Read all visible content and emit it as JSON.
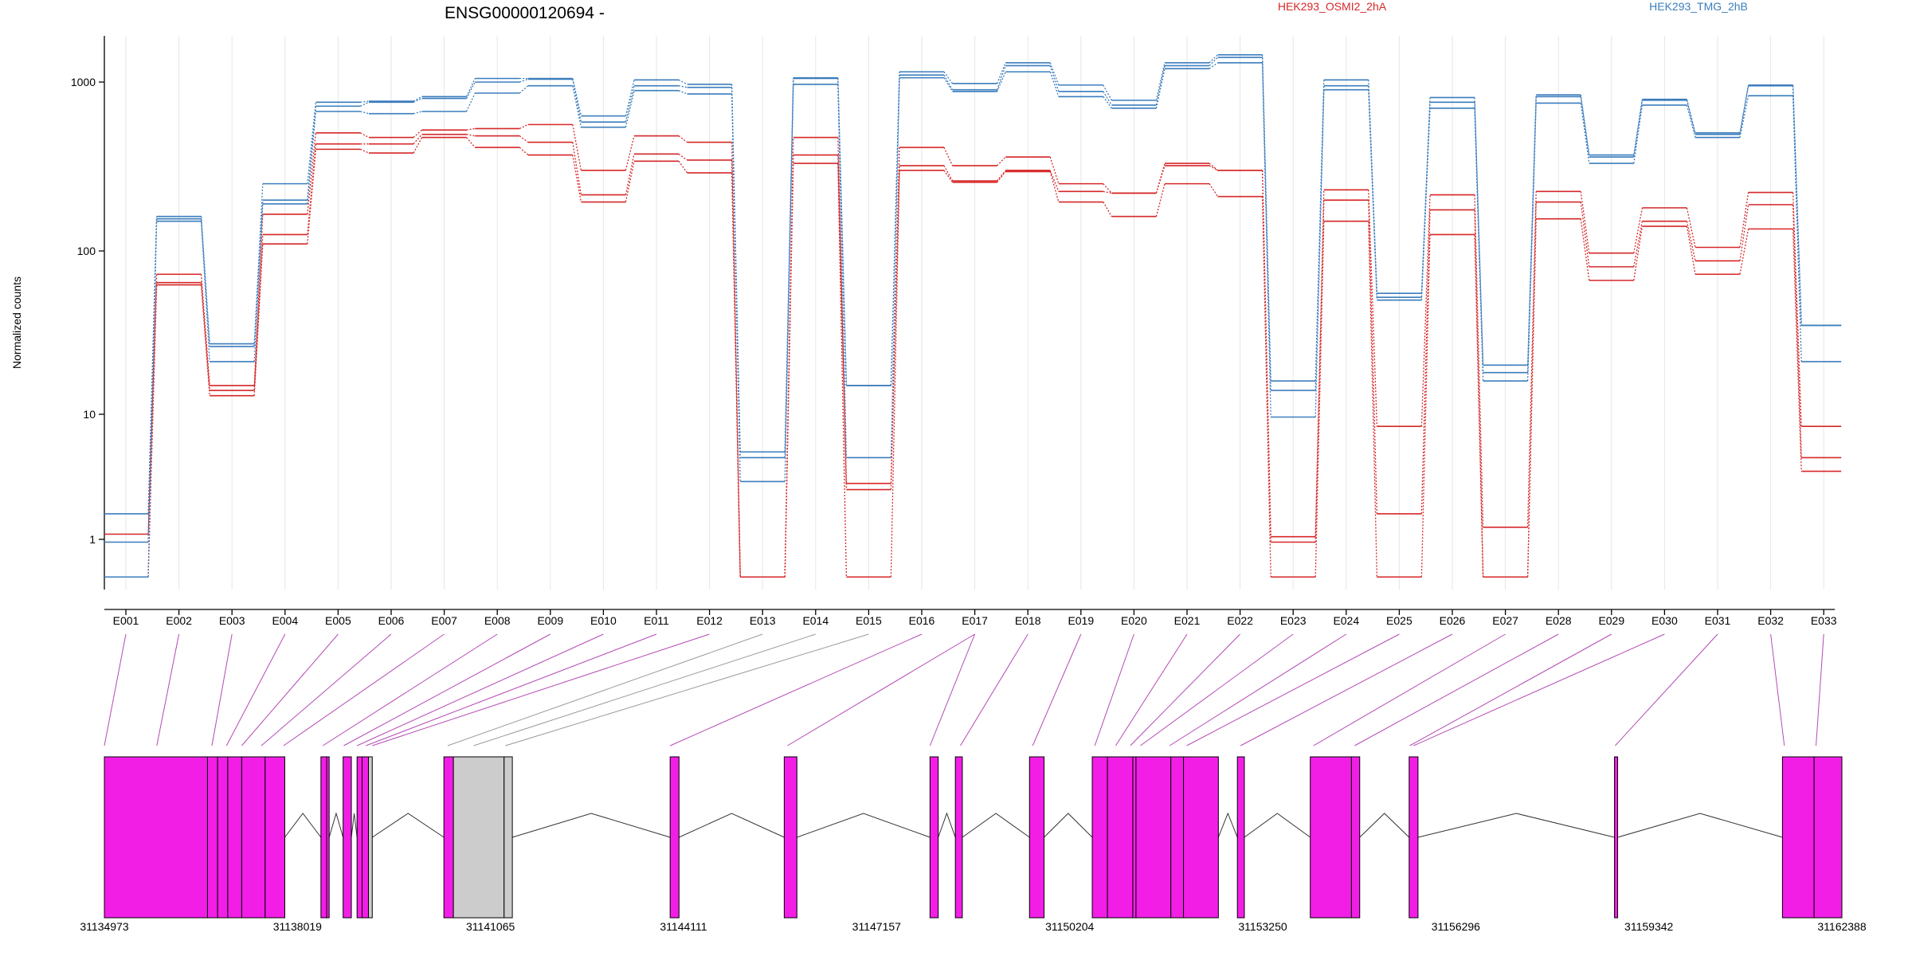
{
  "chart_data": {
    "type": "line",
    "title": "ENSG00000120694 -",
    "ylabel": "Normalized counts",
    "yscale": "log",
    "ylim": [
      0.5,
      2000
    ],
    "yticks": [
      1,
      10,
      100,
      1000
    ],
    "ytick_labels": [
      "1",
      "10",
      "100",
      "1000"
    ],
    "categories": [
      "E001",
      "E002",
      "E003",
      "E004",
      "E005",
      "E006",
      "E007",
      "E008",
      "E009",
      "E010",
      "E011",
      "E012",
      "E013",
      "E014",
      "E015",
      "E016",
      "E017",
      "E018",
      "E019",
      "E020",
      "E021",
      "E022",
      "E023",
      "E024",
      "E025",
      "E026",
      "E027",
      "E028",
      "E029",
      "E030",
      "E031",
      "E032",
      "E033"
    ],
    "legend": [
      {
        "name": "HEK293_OSMI2_2hA",
        "color": "#d62728"
      },
      {
        "name": "HEK293_TMG_2hB",
        "color": "#3b7dbd"
      }
    ],
    "series": [
      {
        "group": "HEK293_OSMI2_2hA",
        "color": "#d62728",
        "values": [
          1.1,
          72,
          15,
          165,
          500,
          470,
          520,
          530,
          560,
          300,
          480,
          440,
          0.5,
          470,
          2.8,
          410,
          320,
          360,
          250,
          220,
          330,
          300,
          1.05,
          230,
          8,
          215,
          1.25,
          225,
          97,
          180,
          105,
          222,
          8
        ]
      },
      {
        "group": "HEK293_OSMI2_2hA",
        "color": "#d62728",
        "values": [
          0.5,
          64,
          14,
          125,
          430,
          430,
          490,
          480,
          440,
          215,
          375,
          345,
          0.5,
          370,
          2.5,
          320,
          260,
          300,
          225,
          220,
          320,
          300,
          0.95,
          200,
          1.6,
          175,
          0.5,
          195,
          80,
          150,
          87,
          188,
          4.5
        ]
      },
      {
        "group": "HEK293_OSMI2_2hA",
        "color": "#d62728",
        "values": [
          0.5,
          62,
          13,
          110,
          400,
          380,
          470,
          410,
          370,
          195,
          340,
          290,
          0.5,
          330,
          0.5,
          300,
          255,
          295,
          195,
          160,
          250,
          210,
          0.5,
          150,
          0.5,
          125,
          0.5,
          155,
          66,
          140,
          72,
          135,
          3.5
        ]
      },
      {
        "group": "HEK293_TMG_2hB",
        "color": "#3b7dbd",
        "values": [
          1.6,
          160,
          27,
          250,
          760,
          770,
          820,
          1050,
          1050,
          630,
          1030,
          970,
          5,
          1060,
          15,
          1150,
          980,
          1300,
          960,
          780,
          1300,
          1450,
          16,
          1030,
          55,
          810,
          20,
          840,
          370,
          790,
          500,
          960,
          35
        ]
      },
      {
        "group": "HEK293_TMG_2hB",
        "color": "#3b7dbd",
        "values": [
          0.95,
          155,
          26,
          200,
          720,
          760,
          800,
          1000,
          1040,
          580,
          950,
          930,
          4.5,
          1050,
          15,
          1100,
          900,
          1250,
          880,
          730,
          1250,
          1400,
          14,
          950,
          52,
          760,
          18,
          820,
          360,
          780,
          490,
          950,
          35
        ]
      },
      {
        "group": "HEK293_TMG_2hB",
        "color": "#3b7dbd",
        "values": [
          0.5,
          150,
          21,
          190,
          670,
          650,
          670,
          860,
          950,
          540,
          890,
          850,
          2.9,
          970,
          4.5,
          1060,
          880,
          1150,
          820,
          700,
          1200,
          1300,
          9.5,
          900,
          50,
          700,
          16,
          750,
          330,
          730,
          470,
          830,
          21
        ]
      }
    ],
    "gene_model": {
      "coord_ticks": [
        31134973,
        31138019,
        31141065,
        31144111,
        31147157,
        31150204,
        31153250,
        31156296,
        31159342,
        31162388
      ],
      "coord_tick_labels": [
        "31134973",
        "31138019",
        "31141065",
        "31144111",
        "31147157",
        "31150204",
        "31153250",
        "31156296",
        "31159342",
        "31162388"
      ],
      "exon_color": "#f21ee6",
      "excluded_color": "#cccccc",
      "blocks": [
        [
          31134973,
          31136600,
          "E001"
        ],
        [
          31136600,
          31136760,
          "E002"
        ],
        [
          31136760,
          31136920,
          "E003"
        ],
        [
          31136920,
          31137140,
          "E004"
        ],
        [
          31137140,
          31137510,
          "E005"
        ],
        [
          31137510,
          31137820,
          "E006"
        ],
        [
          31138390,
          31138480,
          "E007"
        ],
        [
          31138480,
          31138520,
          "E008"
        ],
        [
          31138740,
          31138870,
          "E009"
        ],
        [
          31138960,
          31139040,
          "E010"
        ],
        [
          31139040,
          31139140,
          "E011"
        ],
        [
          31139140,
          31139200,
          "E012",
          "excluded"
        ],
        [
          31140330,
          31140480,
          "E013"
        ],
        [
          31140480,
          31141280,
          "E014",
          "excluded"
        ],
        [
          31141280,
          31141410,
          "E015",
          "excluded"
        ],
        [
          31143900,
          31144040,
          "E016"
        ],
        [
          31145700,
          31145900,
          "E017"
        ],
        [
          31148000,
          31148130,
          "E018"
        ],
        [
          31148400,
          31148510,
          "E019"
        ],
        [
          31149570,
          31149800,
          "E020"
        ],
        [
          31150560,
          31150800,
          "E021"
        ],
        [
          31150800,
          31151200,
          "E022"
        ],
        [
          31151200,
          31151250,
          "E023"
        ],
        [
          31151250,
          31151800,
          "E024"
        ],
        [
          31151800,
          31152000,
          "E025"
        ],
        [
          31152000,
          31152550,
          "E026"
        ],
        [
          31152850,
          31152960,
          "E027"
        ],
        [
          31154000,
          31154650,
          "E028"
        ],
        [
          31154650,
          31154780,
          "E029"
        ],
        [
          31155560,
          31155700,
          "E030"
        ],
        [
          31158800,
          31158850,
          "E031"
        ],
        [
          31161450,
          31161950,
          "E032"
        ],
        [
          31161950,
          31162388,
          "E033"
        ]
      ],
      "connector_targets": [
        31134973,
        31135800,
        31136670,
        31136900,
        31137140,
        31137450,
        31137800,
        31138420,
        31138750,
        31138960,
        31139100,
        31139200,
        31140390,
        31140800,
        31141300,
        31143900,
        31145750,
        31148000,
        31148480,
        31149620,
        31150600,
        31150930,
        31151160,
        31151320,
        31151780,
        31152050,
        31152900,
        31154050,
        31154700,
        31155570,
        31155630,
        31158810,
        31161480,
        31161980
      ]
    }
  }
}
